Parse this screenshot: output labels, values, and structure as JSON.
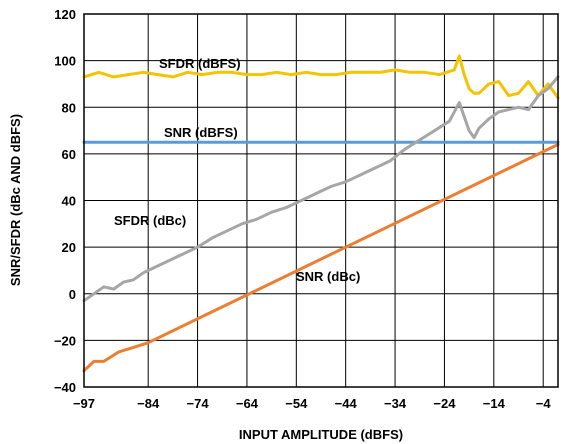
{
  "chart_data": {
    "type": "line",
    "title": "",
    "xlabel": "INPUT AMPLITUDE (dBFS)",
    "ylabel": "SNR/SFDR (dBc AND dBFS)",
    "xlim": [
      -97,
      -1
    ],
    "ylim": [
      -40,
      120
    ],
    "x_ticks": [
      -97,
      -84,
      -74,
      -64,
      -54,
      -44,
      -34,
      -24,
      -14,
      -4
    ],
    "y_ticks": [
      -40,
      -20,
      0,
      20,
      40,
      60,
      80,
      100,
      120
    ],
    "x_tick_labels": [
      "−97",
      "−84",
      "−74",
      "−64",
      "−54",
      "−44",
      "−34",
      "−24",
      "−14",
      "−4"
    ],
    "y_tick_labels": [
      "−40",
      "−20",
      "0",
      "20",
      "40",
      "60",
      "80",
      "100",
      "120"
    ],
    "grid": true,
    "legend": "none",
    "series": [
      {
        "name": "SFDR (dBFS)",
        "color": "#f5c400",
        "x": [
          -97,
          -94,
          -91,
          -88,
          -85,
          -82,
          -79,
          -76,
          -73,
          -70,
          -67,
          -64,
          -61,
          -58,
          -55,
          -52,
          -49,
          -46,
          -43,
          -40,
          -37,
          -34,
          -31,
          -28,
          -25,
          -22,
          -21,
          -20,
          -19,
          -18,
          -17,
          -15,
          -13,
          -11,
          -9,
          -7,
          -5,
          -3,
          -1
        ],
        "y": [
          93,
          95,
          93,
          94,
          95,
          94,
          93,
          95,
          94,
          95,
          95,
          94,
          94,
          95,
          94,
          95,
          94,
          94,
          95,
          95,
          95,
          96,
          95,
          95,
          94,
          96,
          102,
          94,
          88,
          86,
          86,
          90,
          91,
          85,
          86,
          91,
          85,
          90,
          84
        ]
      },
      {
        "name": "SNR (dBFS)",
        "color": "#5b9bd5",
        "x": [
          -97,
          -1
        ],
        "y": [
          65,
          65
        ]
      },
      {
        "name": "SFDR (dBc)",
        "color": "#a6a6a6",
        "x": [
          -97,
          -95,
          -93,
          -91,
          -89,
          -87,
          -85,
          -83,
          -80,
          -77,
          -74,
          -71,
          -68,
          -65,
          -62,
          -59,
          -56,
          -53,
          -50,
          -47,
          -44,
          -41,
          -38,
          -35,
          -32,
          -29,
          -26,
          -23,
          -21,
          -20,
          -19,
          -18,
          -17,
          -15,
          -13,
          -11,
          -9,
          -7,
          -5,
          -3,
          -1
        ],
        "y": [
          -3,
          0,
          3,
          2,
          5,
          6,
          9,
          11,
          14,
          17,
          20,
          24,
          27,
          30,
          32,
          35,
          37,
          40,
          43,
          46,
          48,
          51,
          54,
          57,
          62,
          66,
          70,
          74,
          82,
          76,
          70,
          67,
          71,
          75,
          78,
          79,
          80,
          79,
          85,
          88,
          93
        ]
      },
      {
        "name": "SNR (dBc)",
        "color": "#ed7d31",
        "x": [
          -97,
          -95,
          -93,
          -90,
          -87,
          -84,
          -1
        ],
        "y": [
          -33,
          -29,
          -29,
          -25,
          -23,
          -21,
          64
        ]
      }
    ],
    "annotations": [
      "SFDR (dBFS)",
      "SNR (dBFS)",
      "SFDR (dBc)",
      "SNR (dBc)"
    ]
  }
}
